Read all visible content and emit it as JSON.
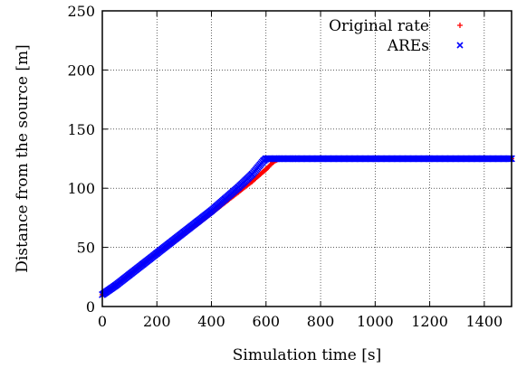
{
  "chart_data": {
    "type": "scatter",
    "xlabel": "Simulation time [s]",
    "ylabel": "Distance from the source [m]",
    "xlim": [
      0,
      1500
    ],
    "ylim": [
      0,
      250
    ],
    "xticks": [
      0,
      200,
      400,
      600,
      800,
      1000,
      1200,
      1400
    ],
    "yticks": [
      0,
      50,
      100,
      150,
      200,
      250
    ],
    "grid": true,
    "legend_position": "top-right",
    "series": [
      {
        "name": "Original rate",
        "color": "#ff0000",
        "marker": "plus",
        "x": [
          0,
          50,
          100,
          150,
          200,
          250,
          300,
          350,
          400,
          450,
          500,
          550,
          600,
          630,
          650,
          700,
          800,
          900,
          1000,
          1100,
          1200,
          1300,
          1400,
          1500
        ],
        "y": [
          10,
          18,
          27,
          36,
          45,
          53,
          62,
          70,
          79,
          88,
          97,
          106,
          116,
          123,
          125,
          125,
          125,
          125,
          125,
          125,
          125,
          125,
          125,
          125
        ]
      },
      {
        "name": "AREs",
        "color": "#0000ff",
        "marker": "x",
        "x": [
          0,
          50,
          100,
          150,
          200,
          250,
          300,
          350,
          400,
          450,
          500,
          550,
          590,
          600,
          650,
          700,
          800,
          900,
          1000,
          1100,
          1200,
          1300,
          1400,
          1500
        ],
        "y": [
          10,
          18,
          27,
          36,
          45,
          54,
          63,
          72,
          81,
          91,
          101,
          112,
          123,
          125,
          125,
          125,
          125,
          125,
          125,
          125,
          125,
          125,
          125,
          125
        ]
      }
    ]
  }
}
